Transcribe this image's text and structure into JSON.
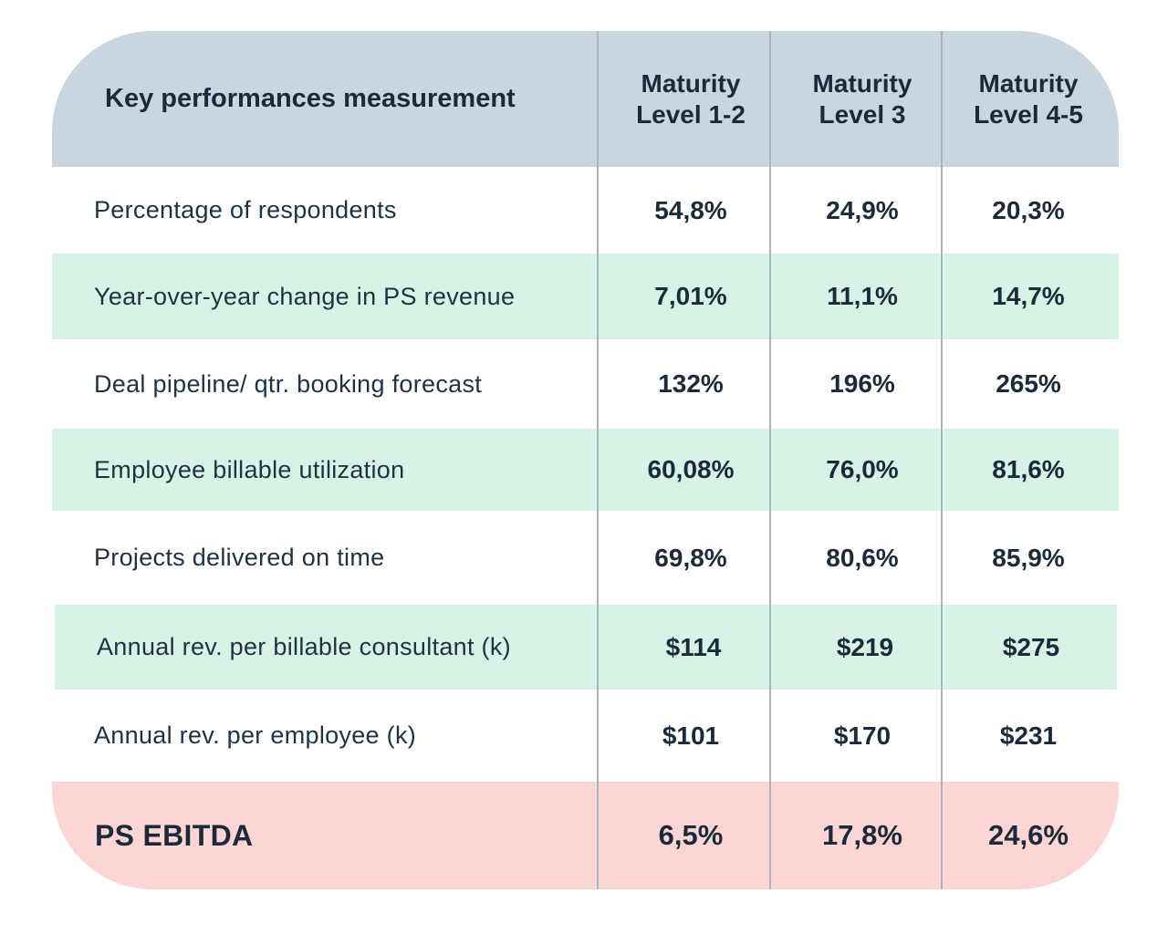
{
  "header": {
    "title": "Key performances measurement",
    "columns": [
      {
        "line1": "Maturity",
        "line2": "Level 1-2"
      },
      {
        "line1": "Maturity",
        "line2": "Level 3"
      },
      {
        "line1": "Maturity",
        "line2": "Level 4-5"
      }
    ]
  },
  "rows": [
    {
      "label": "Percentage of respondents",
      "values": [
        "54,8%",
        "24,9%",
        "20,3%"
      ]
    },
    {
      "label": "Year-over-year change in PS revenue",
      "values": [
        "7,01%",
        "11,1%",
        "14,7%"
      ]
    },
    {
      "label": "Deal pipeline/ qtr. booking forecast",
      "values": [
        "132%",
        "196%",
        "265%"
      ]
    },
    {
      "label": "Employee billable utilization",
      "values": [
        "60,08%",
        "76,0%",
        "81,6%"
      ]
    },
    {
      "label": "Projects delivered on time",
      "values": [
        "69,8%",
        "80,6%",
        "85,9%"
      ]
    },
    {
      "label": "Annual rev. per billable consultant (k)",
      "values": [
        "$114",
        "$219",
        "$275"
      ]
    },
    {
      "label": "Annual rev. per employee (k)",
      "values": [
        "$101",
        "$170",
        "$231"
      ]
    }
  ],
  "footer": {
    "label": "PS EBITDA",
    "values": [
      "6,5%",
      "17,8%",
      "24,6%"
    ]
  },
  "colors": {
    "header_bg": "#c8d6e0",
    "alt_row_bg": "#d8f3e6",
    "ebitda_bg": "#fdd5d5",
    "divider": "#a9b4bc"
  }
}
